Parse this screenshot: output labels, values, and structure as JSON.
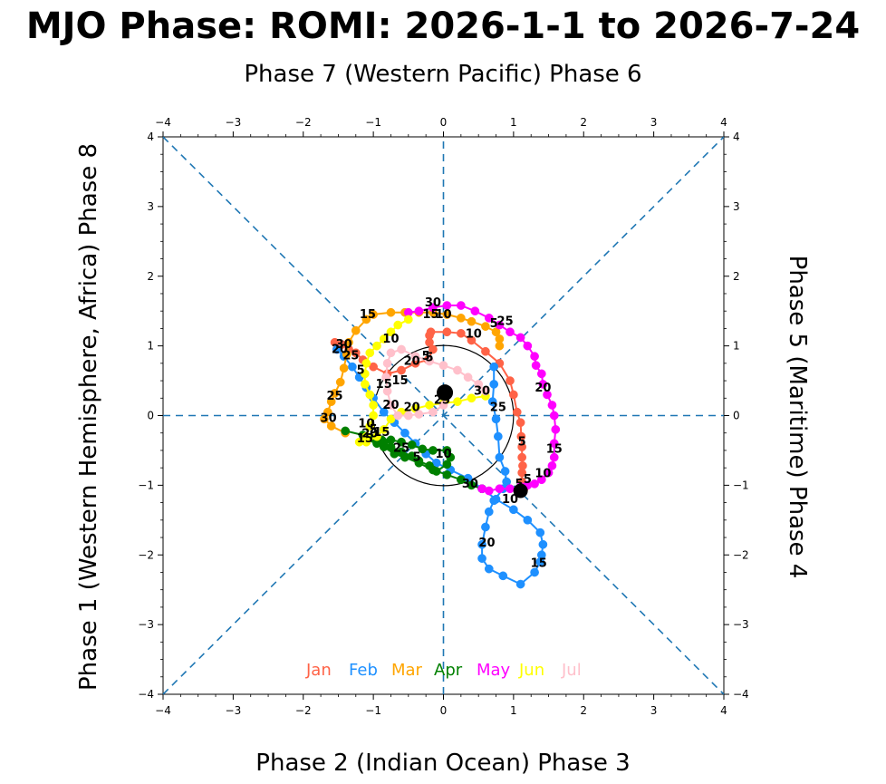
{
  "chart_data": {
    "type": "scatter",
    "title": "MJO Phase: ROMI: 2026-1-1 to 2026-7-24",
    "labels": {
      "top": "Phase 7 (Western Pacific) Phase 6",
      "bottom": "Phase 2 (Indian Ocean) Phase 3",
      "left": "Phase 1 (Western Hemisphere, Africa) Phase 8",
      "right": "Phase 5 (Maritime) Phase 4"
    },
    "xlim": [
      -4,
      4
    ],
    "ylim": [
      -4,
      4
    ],
    "ticks": [
      "−4",
      "−3",
      "−2",
      "−1",
      "0",
      "1",
      "2",
      "3",
      "4"
    ],
    "grid": false,
    "unit_circle": true,
    "phase_lines": "dashed",
    "legend_position": "bottom-center",
    "colors": {
      "axis": "#000000",
      "phase_lines": "#1f77b4",
      "circle": "#000000",
      "marker": "#000000"
    },
    "series": [
      {
        "name": "Jan",
        "color": "#ff6347",
        "points": [
          [
            1.15,
            -1.05
          ],
          [
            1.12,
            -0.95
          ],
          [
            1.12,
            -0.82
          ],
          [
            1.13,
            -0.72
          ],
          [
            1.12,
            -0.6
          ],
          [
            1.12,
            -0.45
          ],
          [
            1.11,
            -0.3
          ],
          [
            1.1,
            -0.1
          ],
          [
            1.05,
            0.05
          ],
          [
            1.0,
            0.3
          ],
          [
            0.95,
            0.5
          ],
          [
            0.8,
            0.75
          ],
          [
            0.6,
            0.92
          ],
          [
            0.4,
            1.08
          ],
          [
            0.25,
            1.18
          ],
          [
            0.05,
            1.2
          ],
          [
            -0.18,
            1.2
          ],
          [
            -0.2,
            1.15
          ],
          [
            -0.2,
            1.05
          ],
          [
            -0.15,
            0.95
          ],
          [
            -0.22,
            0.8
          ],
          [
            -0.4,
            0.75
          ],
          [
            -0.6,
            0.65
          ],
          [
            -0.8,
            0.6
          ],
          [
            -1.0,
            0.7
          ],
          [
            -1.15,
            0.8
          ],
          [
            -1.25,
            0.9
          ],
          [
            -1.35,
            0.95
          ],
          [
            -1.45,
            1.02
          ],
          [
            -1.55,
            1.05
          ],
          [
            -1.52,
            0.95
          ]
        ]
      },
      {
        "name": "Feb",
        "color": "#1e90ff",
        "points": [
          [
            -1.52,
            0.95
          ],
          [
            -1.42,
            0.85
          ],
          [
            -1.3,
            0.7
          ],
          [
            -1.2,
            0.55
          ],
          [
            -1.1,
            0.4
          ],
          [
            -1.0,
            0.25
          ],
          [
            -0.85,
            0.05
          ],
          [
            -0.7,
            -0.1
          ],
          [
            -0.55,
            -0.25
          ],
          [
            -0.4,
            -0.4
          ],
          [
            -0.25,
            -0.55
          ],
          [
            -0.1,
            -0.68
          ],
          [
            0.1,
            -0.78
          ],
          [
            0.35,
            -0.9
          ],
          [
            0.55,
            -1.05
          ],
          [
            0.75,
            -1.2
          ],
          [
            1.0,
            -1.35
          ],
          [
            1.2,
            -1.5
          ],
          [
            1.38,
            -1.68
          ],
          [
            1.42,
            -1.85
          ],
          [
            1.4,
            -2.0
          ],
          [
            1.38,
            -2.1
          ],
          [
            1.3,
            -2.25
          ],
          [
            1.1,
            -2.42
          ],
          [
            0.85,
            -2.3
          ],
          [
            0.65,
            -2.2
          ],
          [
            0.55,
            -2.05
          ],
          [
            0.55,
            -1.85
          ],
          [
            0.6,
            -1.6
          ],
          [
            0.65,
            -1.38
          ],
          [
            0.72,
            -1.22
          ],
          [
            0.85,
            -1.05
          ],
          [
            0.9,
            -0.95
          ],
          [
            0.88,
            -0.8
          ],
          [
            0.8,
            -0.6
          ],
          [
            0.78,
            -0.3
          ],
          [
            0.75,
            -0.05
          ],
          [
            0.7,
            0.2
          ],
          [
            0.72,
            0.45
          ],
          [
            0.72,
            0.7
          ]
        ]
      },
      {
        "name": "Mar",
        "color": "#ffa500",
        "points": [
          [
            0.8,
            1.0
          ],
          [
            0.8,
            1.1
          ],
          [
            0.75,
            1.2
          ],
          [
            0.6,
            1.28
          ],
          [
            0.4,
            1.35
          ],
          [
            0.25,
            1.4
          ],
          [
            0.05,
            1.45
          ],
          [
            -0.15,
            1.48
          ],
          [
            -0.35,
            1.48
          ],
          [
            -0.55,
            1.48
          ],
          [
            -0.75,
            1.48
          ],
          [
            -1.0,
            1.45
          ],
          [
            -1.1,
            1.38
          ],
          [
            -1.25,
            1.22
          ],
          [
            -1.35,
            1.05
          ],
          [
            -1.38,
            0.88
          ],
          [
            -1.42,
            0.68
          ],
          [
            -1.47,
            0.48
          ],
          [
            -1.55,
            0.32
          ],
          [
            -1.6,
            0.2
          ],
          [
            -1.65,
            0.05
          ],
          [
            -1.7,
            -0.05
          ],
          [
            -1.6,
            -0.15
          ],
          [
            -1.4,
            -0.25
          ]
        ]
      },
      {
        "name": "Apr",
        "color": "#008000",
        "points": [
          [
            -1.4,
            -0.22
          ],
          [
            -1.15,
            -0.28
          ],
          [
            -1.0,
            -0.33
          ],
          [
            -0.85,
            -0.38
          ],
          [
            -0.75,
            -0.45
          ],
          [
            -0.6,
            -0.52
          ],
          [
            -0.45,
            -0.58
          ],
          [
            -0.35,
            -0.65
          ],
          [
            -0.2,
            -0.72
          ],
          [
            -0.1,
            -0.8
          ],
          [
            0.05,
            -0.7
          ],
          [
            0.1,
            -0.6
          ],
          [
            0.05,
            -0.5
          ],
          [
            -0.15,
            -0.5
          ],
          [
            -0.3,
            -0.48
          ],
          [
            -0.45,
            -0.42
          ],
          [
            -0.6,
            -0.38
          ],
          [
            -0.75,
            -0.35
          ],
          [
            -0.88,
            -0.35
          ],
          [
            -0.95,
            -0.4
          ],
          [
            -0.85,
            -0.45
          ],
          [
            -0.7,
            -0.55
          ],
          [
            -0.55,
            -0.6
          ],
          [
            -0.35,
            -0.68
          ],
          [
            -0.15,
            -0.78
          ],
          [
            0.05,
            -0.85
          ],
          [
            0.25,
            -0.92
          ],
          [
            0.4,
            -1.0
          ],
          [
            0.55,
            -1.05
          ]
        ]
      },
      {
        "name": "May",
        "color": "#ff00ff",
        "points": [
          [
            0.55,
            -1.05
          ],
          [
            0.65,
            -1.08
          ],
          [
            0.8,
            -1.05
          ],
          [
            0.95,
            -1.05
          ],
          [
            1.1,
            -1.02
          ],
          [
            1.2,
            -1.0
          ],
          [
            1.3,
            -0.98
          ],
          [
            1.4,
            -0.92
          ],
          [
            1.5,
            -0.82
          ],
          [
            1.55,
            -0.72
          ],
          [
            1.58,
            -0.6
          ],
          [
            1.58,
            -0.4
          ],
          [
            1.6,
            -0.2
          ],
          [
            1.58,
            0.0
          ],
          [
            1.55,
            0.15
          ],
          [
            1.48,
            0.3
          ],
          [
            1.42,
            0.45
          ],
          [
            1.4,
            0.6
          ],
          [
            1.32,
            0.72
          ],
          [
            1.3,
            0.85
          ],
          [
            1.2,
            1.0
          ],
          [
            1.1,
            1.12
          ],
          [
            0.95,
            1.2
          ],
          [
            0.8,
            1.3
          ],
          [
            0.65,
            1.4
          ],
          [
            0.45,
            1.5
          ],
          [
            0.25,
            1.58
          ],
          [
            0.05,
            1.58
          ],
          [
            -0.15,
            1.55
          ],
          [
            -0.35,
            1.5
          ],
          [
            -0.5,
            1.48
          ]
        ]
      },
      {
        "name": "Jun",
        "color": "#ffff00",
        "points": [
          [
            -0.5,
            1.38
          ],
          [
            -0.65,
            1.3
          ],
          [
            -0.75,
            1.2
          ],
          [
            -0.85,
            1.1
          ],
          [
            -0.95,
            1.0
          ],
          [
            -1.05,
            0.9
          ],
          [
            -1.1,
            0.75
          ],
          [
            -1.12,
            0.6
          ],
          [
            -1.12,
            0.45
          ],
          [
            -1.05,
            0.3
          ],
          [
            -1.0,
            0.15
          ],
          [
            -1.0,
            0.0
          ],
          [
            -1.05,
            -0.15
          ],
          [
            -1.1,
            -0.3
          ],
          [
            -1.2,
            -0.38
          ],
          [
            -1.1,
            -0.38
          ],
          [
            -0.95,
            -0.3
          ],
          [
            -0.85,
            -0.2
          ],
          [
            -0.75,
            -0.05
          ],
          [
            -0.6,
            0.05
          ],
          [
            -0.4,
            0.1
          ],
          [
            -0.2,
            0.15
          ],
          [
            0.0,
            0.18
          ],
          [
            0.2,
            0.2
          ],
          [
            0.4,
            0.25
          ],
          [
            0.6,
            0.28
          ]
        ]
      },
      {
        "name": "Jul",
        "color": "#ffc0cb",
        "points": [
          [
            0.6,
            0.35
          ],
          [
            0.5,
            0.45
          ],
          [
            0.35,
            0.55
          ],
          [
            0.2,
            0.65
          ],
          [
            0.0,
            0.72
          ],
          [
            -0.2,
            0.78
          ],
          [
            -0.4,
            0.85
          ],
          [
            -0.6,
            0.95
          ],
          [
            -0.75,
            0.9
          ],
          [
            -0.8,
            0.75
          ],
          [
            -0.82,
            0.55
          ],
          [
            -0.8,
            0.35
          ],
          [
            -0.75,
            0.15
          ],
          [
            -0.65,
            0.0
          ],
          [
            -0.5,
            0.0
          ],
          [
            -0.35,
            0.02
          ],
          [
            -0.15,
            0.05
          ],
          [
            0.0,
            0.15
          ],
          [
            0.05,
            0.3
          ],
          [
            0.02,
            0.32
          ]
        ]
      }
    ],
    "day_labels": [
      {
        "text": "5",
        "x": 1.12,
        "y": -0.38,
        "series": "Jan"
      },
      {
        "text": "10",
        "x": 0.43,
        "y": 1.17,
        "series": "Jan"
      },
      {
        "text": "15",
        "x": -0.18,
        "y": 1.45,
        "series": "Jan"
      },
      {
        "text": "20",
        "x": -0.45,
        "y": 0.78,
        "series": "Jan"
      },
      {
        "text": "25",
        "x": -1.32,
        "y": 0.86,
        "series": "Jan"
      },
      {
        "text": "5",
        "x": -1.18,
        "y": 0.65,
        "series": "Feb"
      },
      {
        "text": "10",
        "x": 0.0,
        "y": -0.55,
        "series": "Feb"
      },
      {
        "text": "15",
        "x": 1.36,
        "y": -2.12,
        "series": "Feb"
      },
      {
        "text": "20",
        "x": 0.62,
        "y": -1.83,
        "series": "Feb"
      },
      {
        "text": "25",
        "x": 0.78,
        "y": 0.12,
        "series": "Feb"
      },
      {
        "text": "30",
        "x": -1.42,
        "y": 1.02,
        "series": "Mar"
      },
      {
        "text": "15",
        "x": -1.08,
        "y": 1.45,
        "series": "Mar"
      },
      {
        "text": "20",
        "x": -1.48,
        "y": 0.95,
        "series": "Mar"
      },
      {
        "text": "25",
        "x": -1.55,
        "y": 0.28,
        "series": "Mar"
      },
      {
        "text": "30",
        "x": -1.64,
        "y": -0.04,
        "series": "Mar"
      },
      {
        "text": "5",
        "x": -0.38,
        "y": -0.6,
        "series": "Apr"
      },
      {
        "text": "10",
        "x": -1.1,
        "y": -0.12,
        "series": "Apr"
      },
      {
        "text": "15",
        "x": -0.88,
        "y": -0.24,
        "series": "Apr"
      },
      {
        "text": "20",
        "x": -1.05,
        "y": -0.26,
        "series": "Apr"
      },
      {
        "text": "25",
        "x": -0.6,
        "y": -0.47,
        "series": "Apr"
      },
      {
        "text": "30",
        "x": 0.38,
        "y": -0.98,
        "series": "Apr"
      },
      {
        "text": "5",
        "x": 1.08,
        "y": -0.98,
        "series": "May"
      },
      {
        "text": "10",
        "x": 1.42,
        "y": -0.83,
        "series": "May"
      },
      {
        "text": "15",
        "x": 1.58,
        "y": -0.48,
        "series": "May"
      },
      {
        "text": "20",
        "x": 1.42,
        "y": 0.4,
        "series": "May"
      },
      {
        "text": "25",
        "x": 0.88,
        "y": 1.35,
        "series": "May"
      },
      {
        "text": "30",
        "x": -0.15,
        "y": 1.62,
        "series": "May"
      },
      {
        "text": "10",
        "x": -0.75,
        "y": 1.1,
        "series": "Jun"
      },
      {
        "text": "15",
        "x": -1.12,
        "y": -0.33,
        "series": "Jun"
      },
      {
        "text": "20",
        "x": -0.45,
        "y": 0.12,
        "series": "Jun"
      },
      {
        "text": "25",
        "x": -0.02,
        "y": 0.22,
        "series": "Jun"
      },
      {
        "text": "30",
        "x": 0.55,
        "y": 0.35,
        "series": "Jun"
      },
      {
        "text": "5",
        "x": -0.25,
        "y": 0.85,
        "series": "Jul"
      },
      {
        "text": "10",
        "x": 0.0,
        "y": 1.45,
        "series": "Jul"
      },
      {
        "text": "15",
        "x": -0.85,
        "y": 0.45,
        "series": "Jul"
      },
      {
        "text": "20",
        "x": -0.75,
        "y": 0.15,
        "series": "Jul"
      },
      {
        "text": "5",
        "x": 1.2,
        "y": -0.92,
        "series": "Jan"
      },
      {
        "text": "5",
        "x": 0.72,
        "y": 1.32,
        "series": "Mar"
      },
      {
        "text": "5",
        "x": -1.0,
        "y": -0.2,
        "series": "Apr"
      },
      {
        "text": "10",
        "x": 0.95,
        "y": -1.2,
        "series": "Apr"
      },
      {
        "text": "5",
        "x": -0.2,
        "y": 0.83,
        "series": "Jun"
      },
      {
        "text": "15",
        "x": -0.62,
        "y": 0.5,
        "series": "Jul"
      }
    ],
    "start_marker": [
      1.1,
      -1.08
    ],
    "end_marker": [
      0.02,
      0.33
    ]
  }
}
